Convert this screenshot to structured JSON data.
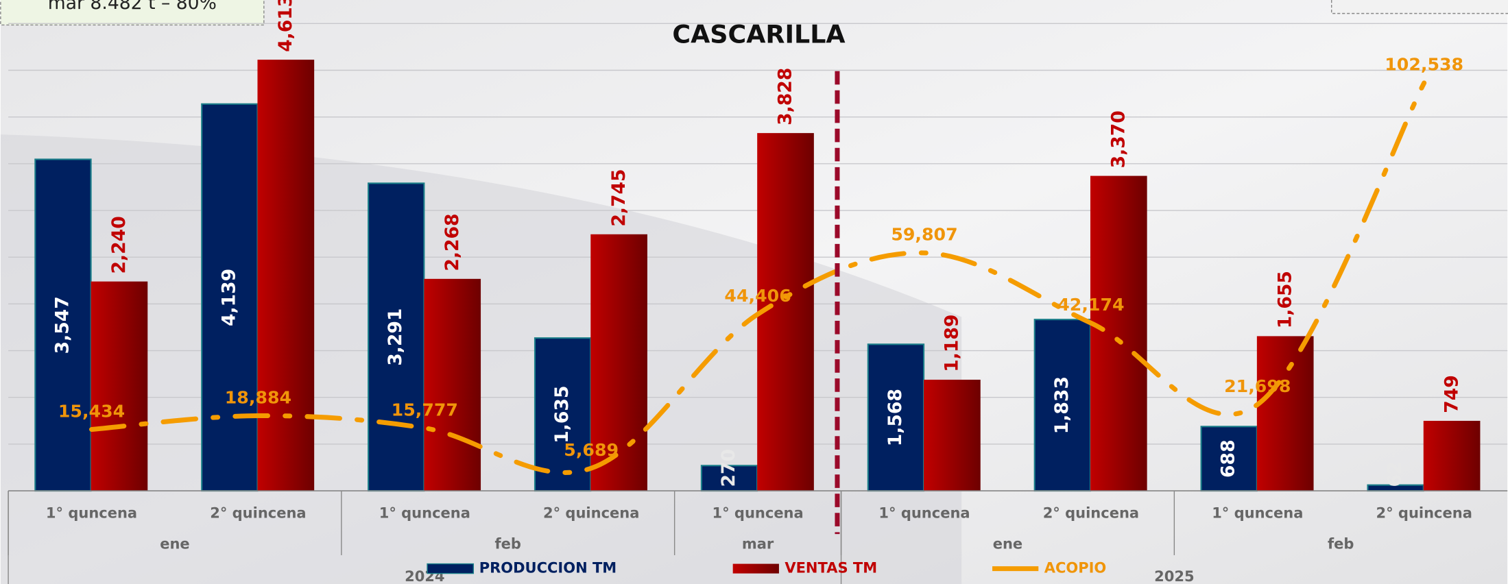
{
  "chart_data": {
    "type": "bar_line",
    "title": "CASCARILLA",
    "note": "mar 8.482 t – 80%",
    "categories": [
      "1° quncena",
      "2° quincena",
      "1° quncena",
      "2° quincena",
      "1° quncena",
      "1° quncena",
      "2° quincena",
      "1° quncena",
      "2° quincena"
    ],
    "month": [
      "ene",
      "ene",
      "feb",
      "feb",
      "mar",
      "ene",
      "ene",
      "feb",
      "feb"
    ],
    "year": [
      "2024",
      "2024",
      "2024",
      "2024",
      "2024",
      "2025",
      "2025",
      "2025",
      "2025"
    ],
    "ylim": [
      0,
      5000
    ],
    "yticks": [
      0,
      500,
      1000,
      1500,
      2000,
      2500,
      3000,
      3500,
      4000,
      4500,
      5000
    ],
    "y2lim": [
      0,
      120000
    ],
    "grid": true,
    "series": [
      {
        "name": "PRODUCCION TM",
        "color": "#002060",
        "values": [
          3547,
          4139,
          3291,
          1635,
          270,
          1568,
          1833,
          688,
          62
        ],
        "value_labels": [
          "3,547",
          "4,139",
          "3,291",
          "1,635",
          "270",
          "1,568",
          "1,833",
          "688",
          "62"
        ]
      },
      {
        "name": "VENTAS TM",
        "color": "#c00000",
        "values": [
          2240,
          4613,
          2268,
          2745,
          3828,
          1189,
          3370,
          1655,
          749
        ],
        "value_labels": [
          "2,240",
          "4,613",
          "2,268",
          "2,745",
          "3,828",
          "1,189",
          "3,370",
          "1,655",
          "749"
        ]
      },
      {
        "name": "ACOPIO",
        "color": "#f59c00",
        "axis": "y2",
        "values": [
          15434,
          18884,
          15777,
          5689,
          44406,
          59807,
          42174,
          21698,
          102538
        ],
        "value_labels": [
          "15,434",
          "18,884",
          "15,777",
          "5,689",
          "44,406",
          "59,807",
          "42,174",
          "21,698",
          "102,538"
        ]
      }
    ]
  }
}
